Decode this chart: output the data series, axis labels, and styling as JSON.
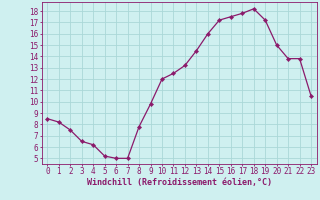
{
  "x": [
    0,
    1,
    2,
    3,
    4,
    5,
    6,
    7,
    8,
    9,
    10,
    11,
    12,
    13,
    14,
    15,
    16,
    17,
    18,
    19,
    20,
    21,
    22,
    23
  ],
  "y": [
    8.5,
    8.2,
    7.5,
    6.5,
    6.2,
    5.2,
    5.0,
    5.0,
    7.8,
    9.8,
    12.0,
    12.5,
    13.2,
    14.5,
    16.0,
    17.2,
    17.5,
    17.8,
    18.2,
    17.2,
    15.0,
    13.8,
    13.8,
    10.5
  ],
  "line_color": "#8b1a6b",
  "marker": "D",
  "marker_size": 2.2,
  "bg_color": "#cff0f0",
  "grid_color": "#aad8d8",
  "xlabel": "Windchill (Refroidissement éolien,°C)",
  "xlabel_fontsize": 6.0,
  "ylim": [
    4.5,
    18.8
  ],
  "xlim": [
    -0.5,
    23.5
  ],
  "yticks": [
    5,
    6,
    7,
    8,
    9,
    10,
    11,
    12,
    13,
    14,
    15,
    16,
    17,
    18
  ],
  "xticks": [
    0,
    1,
    2,
    3,
    4,
    5,
    6,
    7,
    8,
    9,
    10,
    11,
    12,
    13,
    14,
    15,
    16,
    17,
    18,
    19,
    20,
    21,
    22,
    23
  ],
  "tick_color": "#8b1a6b",
  "tick_fontsize": 5.5,
  "spine_color": "#8b1a6b",
  "linewidth": 0.9
}
